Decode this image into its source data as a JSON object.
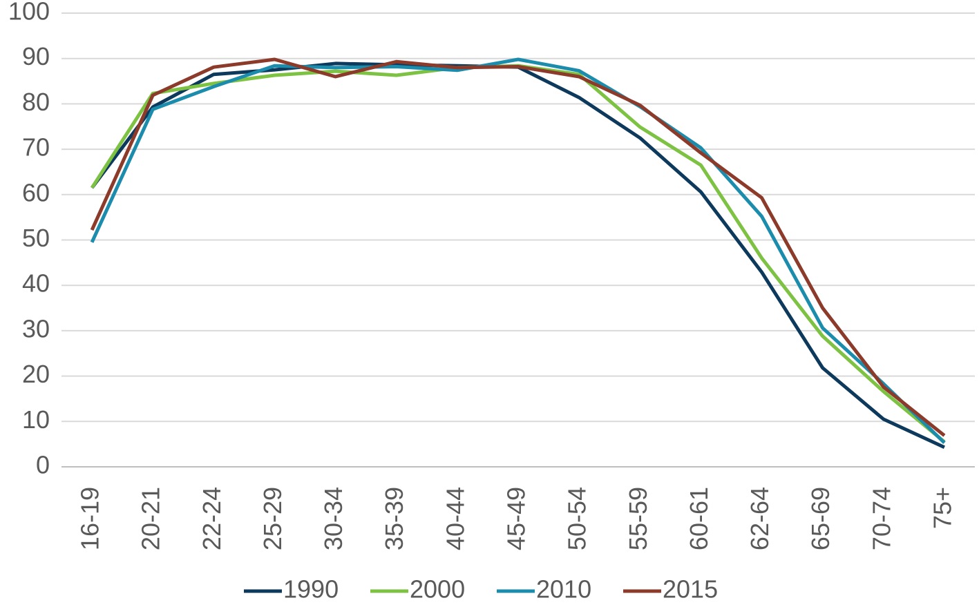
{
  "chart_data": {
    "type": "line",
    "categories": [
      "16-19",
      "20-21",
      "22-24",
      "25-29",
      "30-34",
      "35-39",
      "40-44",
      "45-49",
      "50-54",
      "55-59",
      "60-61",
      "62-64",
      "65-69",
      "70-74",
      "75+"
    ],
    "series": [
      {
        "name": "1990",
        "color": "#0d3a5c",
        "values": [
          61.5,
          79.3,
          86.5,
          87.5,
          88.9,
          88.6,
          88.4,
          88.1,
          81.4,
          72.5,
          60.6,
          42.9,
          21.8,
          10.5,
          4.3
        ]
      },
      {
        "name": "2000",
        "color": "#7dc242",
        "values": [
          61.5,
          82.3,
          84.5,
          86.3,
          87.2,
          86.3,
          88.0,
          88.4,
          86.5,
          74.9,
          66.5,
          46.0,
          28.8,
          16.6,
          5.5
        ]
      },
      {
        "name": "2010",
        "color": "#1c8cad",
        "values": [
          49.5,
          78.8,
          83.8,
          88.4,
          88.0,
          88.2,
          87.4,
          89.8,
          87.3,
          79.4,
          70.3,
          55.2,
          30.6,
          18.3,
          5.3
        ]
      },
      {
        "name": "2015",
        "color": "#8c3a2a",
        "values": [
          52.2,
          81.9,
          88.1,
          89.8,
          86.0,
          89.3,
          88.0,
          88.2,
          86.0,
          79.7,
          69.2,
          59.3,
          35.0,
          17.6,
          6.9
        ]
      }
    ],
    "ylim": [
      0,
      100
    ],
    "yticks": [
      0,
      10,
      20,
      30,
      40,
      50,
      60,
      70,
      80,
      90,
      100
    ],
    "grid": true,
    "legend": "bottom"
  }
}
